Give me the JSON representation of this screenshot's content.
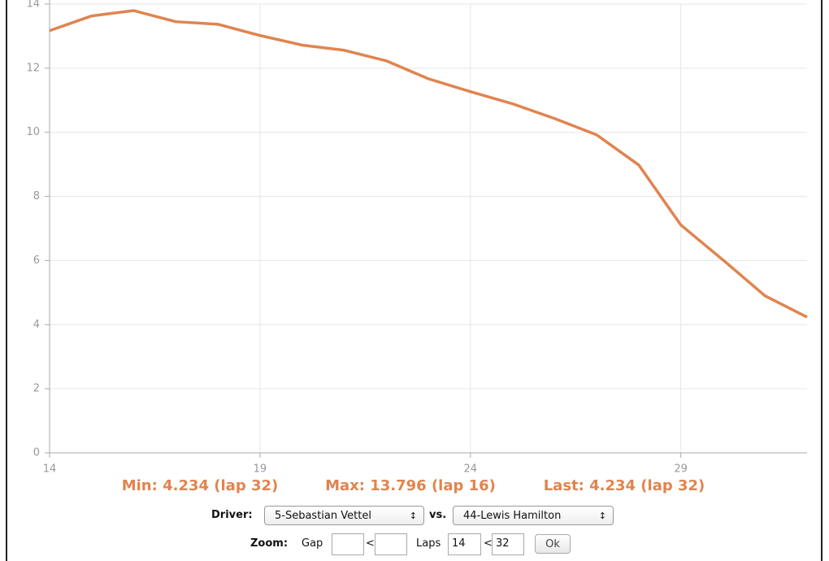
{
  "chart_data": {
    "type": "line",
    "x": [
      14,
      15,
      16,
      17,
      18,
      19,
      20,
      21,
      22,
      23,
      24,
      25,
      26,
      27,
      28,
      29,
      30,
      31,
      32
    ],
    "series": [
      {
        "name": "Gap",
        "color": "#e0844f",
        "values": [
          13.17,
          13.63,
          13.796,
          13.45,
          13.37,
          13.02,
          12.72,
          12.56,
          12.23,
          11.67,
          11.27,
          10.89,
          10.43,
          9.92,
          8.98,
          7.11,
          6.02,
          4.9,
          4.234
        ]
      }
    ],
    "xlim": [
      14,
      32
    ],
    "xticks": [
      14,
      19,
      24,
      29
    ],
    "ylim": [
      0,
      14
    ],
    "yticks": [
      0,
      2,
      4,
      6,
      8,
      10,
      12,
      14
    ],
    "grid": true,
    "stats": [
      "Min: 4.234 (lap 32)",
      "Max: 13.796 (lap 16)",
      "Last: 4.234 (lap 32)"
    ]
  },
  "controls": {
    "driver_label": "Driver:",
    "driver": "5-Sebastian Vettel",
    "vs_label": "vs.",
    "opponent": "44-Lewis Hamilton",
    "zoom_label": "Zoom:",
    "gap_label": "Gap",
    "lt1": "<",
    "laps_label": "Laps",
    "laps_from": "14",
    "lt2": "<",
    "laps_to": "32",
    "ok": "Ok"
  }
}
